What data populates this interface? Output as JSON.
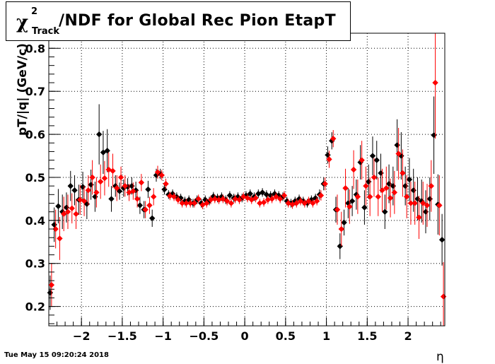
{
  "title": {
    "chi": "χ",
    "sup": "2",
    "sub": "Track",
    "rest": "/NDF for Global Rec Pion EtapT"
  },
  "timestamp": "Tue May 15 09:20:24 2018",
  "chart_data": {
    "type": "scatter",
    "title": "χ²_Track/NDF for Global Rec Pion EtapT",
    "xlabel": "η",
    "ylabel": "pT/|q| (GeV/c)",
    "xlim": [
      -2.4,
      2.45
    ],
    "ylim": [
      0.155,
      0.835
    ],
    "grid": true,
    "xticks": [
      -2,
      -1.5,
      -1,
      -0.5,
      0,
      0.5,
      1,
      1.5,
      2
    ],
    "xtick_labels": [
      "−2",
      "−1.5",
      "−1",
      "−0.5",
      "0",
      "0.5",
      "1",
      "1.5",
      "2"
    ],
    "yticks": [
      0.2,
      0.3,
      0.4,
      0.5,
      0.6,
      0.7,
      0.8
    ],
    "ytick_labels": [
      "0.2",
      "0.3",
      "0.4",
      "0.5",
      "0.6",
      "0.7",
      "0.8"
    ],
    "series": [
      {
        "color": "#000000",
        "points": [
          [
            -2.375,
            0.232,
            0.04
          ],
          [
            -2.325,
            0.39,
            0.04
          ],
          [
            -2.275,
            0.433,
            0.04
          ],
          [
            -2.225,
            0.42,
            0.04
          ],
          [
            -2.175,
            0.43,
            0.035
          ],
          [
            -2.125,
            0.48,
            0.035
          ],
          [
            -2.075,
            0.47,
            0.035
          ],
          [
            -2.025,
            0.448,
            0.035
          ],
          [
            -1.975,
            0.478,
            0.035
          ],
          [
            -1.925,
            0.438,
            0.035
          ],
          [
            -1.875,
            0.483,
            0.035
          ],
          [
            -1.825,
            0.455,
            0.035
          ],
          [
            -1.775,
            0.6,
            0.07
          ],
          [
            -1.725,
            0.558,
            0.05
          ],
          [
            -1.675,
            0.562,
            0.05
          ],
          [
            -1.625,
            0.45,
            0.03
          ],
          [
            -1.575,
            0.48,
            0.025
          ],
          [
            -1.525,
            0.468,
            0.02
          ],
          [
            -1.475,
            0.475,
            0.02
          ],
          [
            -1.425,
            0.478,
            0.02
          ],
          [
            -1.375,
            0.48,
            0.02
          ],
          [
            -1.325,
            0.47,
            0.02
          ],
          [
            -1.275,
            0.435,
            0.02
          ],
          [
            -1.225,
            0.425,
            0.02
          ],
          [
            -1.175,
            0.472,
            0.02
          ],
          [
            -1.125,
            0.405,
            0.02
          ],
          [
            -1.075,
            0.505,
            0.015
          ],
          [
            -1.025,
            0.508,
            0.012
          ],
          [
            -0.975,
            0.472,
            0.012
          ],
          [
            -0.925,
            0.46,
            0.01
          ],
          [
            -0.875,
            0.462,
            0.01
          ],
          [
            -0.825,
            0.455,
            0.01
          ],
          [
            -0.775,
            0.452,
            0.01
          ],
          [
            -0.725,
            0.445,
            0.01
          ],
          [
            -0.675,
            0.448,
            0.01
          ],
          [
            -0.625,
            0.44,
            0.01
          ],
          [
            -0.575,
            0.448,
            0.01
          ],
          [
            -0.525,
            0.44,
            0.01
          ],
          [
            -0.475,
            0.448,
            0.01
          ],
          [
            -0.425,
            0.445,
            0.01
          ],
          [
            -0.375,
            0.456,
            0.01
          ],
          [
            -0.325,
            0.452,
            0.01
          ],
          [
            -0.275,
            0.455,
            0.01
          ],
          [
            -0.225,
            0.448,
            0.01
          ],
          [
            -0.175,
            0.458,
            0.01
          ],
          [
            -0.125,
            0.452,
            0.01
          ],
          [
            -0.075,
            0.455,
            0.01
          ],
          [
            -0.025,
            0.452,
            0.01
          ],
          [
            0.025,
            0.458,
            0.01
          ],
          [
            0.075,
            0.462,
            0.01
          ],
          [
            0.125,
            0.455,
            0.01
          ],
          [
            0.175,
            0.462,
            0.01
          ],
          [
            0.225,
            0.465,
            0.01
          ],
          [
            0.275,
            0.46,
            0.01
          ],
          [
            0.325,
            0.458,
            0.01
          ],
          [
            0.375,
            0.462,
            0.01
          ],
          [
            0.425,
            0.458,
            0.01
          ],
          [
            0.475,
            0.455,
            0.01
          ],
          [
            0.525,
            0.445,
            0.01
          ],
          [
            0.575,
            0.44,
            0.01
          ],
          [
            0.625,
            0.445,
            0.01
          ],
          [
            0.675,
            0.45,
            0.01
          ],
          [
            0.725,
            0.445,
            0.01
          ],
          [
            0.775,
            0.44,
            0.01
          ],
          [
            0.825,
            0.448,
            0.01
          ],
          [
            0.875,
            0.452,
            0.01
          ],
          [
            0.925,
            0.46,
            0.012
          ],
          [
            0.975,
            0.485,
            0.015
          ],
          [
            1.025,
            0.552,
            0.02
          ],
          [
            1.075,
            0.585,
            0.02
          ],
          [
            1.125,
            0.425,
            0.03
          ],
          [
            1.175,
            0.34,
            0.03
          ],
          [
            1.225,
            0.395,
            0.03
          ],
          [
            1.275,
            0.44,
            0.035
          ],
          [
            1.325,
            0.445,
            0.035
          ],
          [
            1.375,
            0.46,
            0.035
          ],
          [
            1.425,
            0.535,
            0.04
          ],
          [
            1.475,
            0.43,
            0.04
          ],
          [
            1.525,
            0.49,
            0.04
          ],
          [
            1.575,
            0.55,
            0.045
          ],
          [
            1.625,
            0.54,
            0.045
          ],
          [
            1.675,
            0.51,
            0.045
          ],
          [
            1.725,
            0.42,
            0.04
          ],
          [
            1.775,
            0.485,
            0.045
          ],
          [
            1.825,
            0.48,
            0.045
          ],
          [
            1.875,
            0.575,
            0.06
          ],
          [
            1.925,
            0.55,
            0.055
          ],
          [
            1.975,
            0.48,
            0.045
          ],
          [
            2.025,
            0.495,
            0.05
          ],
          [
            2.075,
            0.47,
            0.05
          ],
          [
            2.125,
            0.45,
            0.05
          ],
          [
            2.175,
            0.445,
            0.05
          ],
          [
            2.225,
            0.42,
            0.05
          ],
          [
            2.275,
            0.45,
            0.05
          ],
          [
            2.325,
            0.598,
            0.09
          ],
          [
            2.375,
            0.437,
            0.07
          ],
          [
            2.425,
            0.355,
            0.06
          ]
        ]
      },
      {
        "color": "#ff0000",
        "points": [
          [
            -2.375,
            0.25,
            0.05
          ],
          [
            -2.325,
            0.38,
            0.045
          ],
          [
            -2.275,
            0.358,
            0.05
          ],
          [
            -2.225,
            0.415,
            0.04
          ],
          [
            -2.175,
            0.42,
            0.04
          ],
          [
            -2.125,
            0.428,
            0.035
          ],
          [
            -2.075,
            0.415,
            0.035
          ],
          [
            -2.025,
            0.448,
            0.035
          ],
          [
            -1.975,
            0.445,
            0.035
          ],
          [
            -1.925,
            0.47,
            0.035
          ],
          [
            -1.875,
            0.5,
            0.04
          ],
          [
            -1.825,
            0.465,
            0.035
          ],
          [
            -1.775,
            0.49,
            0.04
          ],
          [
            -1.725,
            0.498,
            0.04
          ],
          [
            -1.675,
            0.518,
            0.04
          ],
          [
            -1.625,
            0.515,
            0.04
          ],
          [
            -1.575,
            0.475,
            0.03
          ],
          [
            -1.525,
            0.5,
            0.025
          ],
          [
            -1.475,
            0.48,
            0.025
          ],
          [
            -1.425,
            0.465,
            0.02
          ],
          [
            -1.375,
            0.468,
            0.02
          ],
          [
            -1.325,
            0.45,
            0.02
          ],
          [
            -1.275,
            0.488,
            0.02
          ],
          [
            -1.225,
            0.425,
            0.02
          ],
          [
            -1.175,
            0.435,
            0.02
          ],
          [
            -1.125,
            0.455,
            0.02
          ],
          [
            -1.075,
            0.512,
            0.015
          ],
          [
            -1.025,
            0.505,
            0.012
          ],
          [
            -0.975,
            0.485,
            0.012
          ],
          [
            -0.925,
            0.457,
            0.01
          ],
          [
            -0.875,
            0.455,
            0.01
          ],
          [
            -0.825,
            0.448,
            0.01
          ],
          [
            -0.775,
            0.44,
            0.01
          ],
          [
            -0.725,
            0.44,
            0.01
          ],
          [
            -0.675,
            0.44,
            0.01
          ],
          [
            -0.625,
            0.44,
            0.01
          ],
          [
            -0.575,
            0.45,
            0.01
          ],
          [
            -0.525,
            0.436,
            0.01
          ],
          [
            -0.475,
            0.44,
            0.01
          ],
          [
            -0.425,
            0.448,
            0.01
          ],
          [
            -0.375,
            0.45,
            0.01
          ],
          [
            -0.325,
            0.448,
            0.01
          ],
          [
            -0.275,
            0.45,
            0.01
          ],
          [
            -0.225,
            0.445,
            0.01
          ],
          [
            -0.175,
            0.44,
            0.01
          ],
          [
            -0.125,
            0.45,
            0.01
          ],
          [
            -0.075,
            0.448,
            0.01
          ],
          [
            -0.025,
            0.455,
            0.01
          ],
          [
            0.025,
            0.452,
            0.01
          ],
          [
            0.075,
            0.448,
            0.01
          ],
          [
            0.125,
            0.452,
            0.01
          ],
          [
            0.175,
            0.44,
            0.01
          ],
          [
            0.225,
            0.442,
            0.01
          ],
          [
            0.275,
            0.448,
            0.01
          ],
          [
            0.325,
            0.45,
            0.01
          ],
          [
            0.375,
            0.455,
            0.01
          ],
          [
            0.425,
            0.45,
            0.01
          ],
          [
            0.475,
            0.458,
            0.01
          ],
          [
            0.525,
            0.44,
            0.01
          ],
          [
            0.575,
            0.437,
            0.01
          ],
          [
            0.625,
            0.44,
            0.01
          ],
          [
            0.675,
            0.445,
            0.01
          ],
          [
            0.725,
            0.44,
            0.01
          ],
          [
            0.775,
            0.445,
            0.01
          ],
          [
            0.825,
            0.44,
            0.01
          ],
          [
            0.875,
            0.445,
            0.01
          ],
          [
            0.925,
            0.458,
            0.012
          ],
          [
            0.975,
            0.485,
            0.015
          ],
          [
            1.025,
            0.542,
            0.02
          ],
          [
            1.075,
            0.59,
            0.02
          ],
          [
            1.125,
            0.425,
            0.035
          ],
          [
            1.175,
            0.38,
            0.04
          ],
          [
            1.225,
            0.475,
            0.045
          ],
          [
            1.275,
            0.432,
            0.04
          ],
          [
            1.325,
            0.518,
            0.045
          ],
          [
            1.375,
            0.455,
            0.04
          ],
          [
            1.425,
            0.54,
            0.045
          ],
          [
            1.475,
            0.48,
            0.045
          ],
          [
            1.525,
            0.455,
            0.045
          ],
          [
            1.575,
            0.5,
            0.045
          ],
          [
            1.625,
            0.455,
            0.045
          ],
          [
            1.675,
            0.47,
            0.05
          ],
          [
            1.725,
            0.475,
            0.05
          ],
          [
            1.775,
            0.452,
            0.045
          ],
          [
            1.825,
            0.465,
            0.05
          ],
          [
            1.875,
            0.555,
            0.06
          ],
          [
            1.925,
            0.51,
            0.055
          ],
          [
            1.975,
            0.455,
            0.05
          ],
          [
            2.025,
            0.44,
            0.05
          ],
          [
            2.075,
            0.44,
            0.05
          ],
          [
            2.125,
            0.407,
            0.05
          ],
          [
            2.175,
            0.44,
            0.05
          ],
          [
            2.225,
            0.435,
            0.05
          ],
          [
            2.275,
            0.48,
            0.06
          ],
          [
            2.325,
            0.72,
            0.13
          ],
          [
            2.375,
            0.435,
            0.07
          ],
          [
            2.425,
            0.223,
            0.08
          ]
        ]
      }
    ]
  }
}
